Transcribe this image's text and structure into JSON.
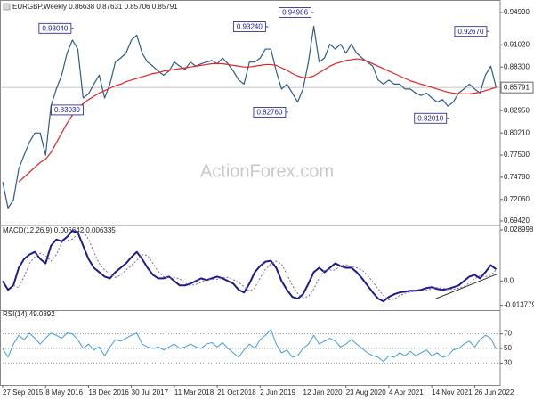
{
  "chart_data": [
    {
      "type": "line",
      "title": "EURGBP,Weekly  0.86638 0.87631 0.85706 0.85791",
      "watermark": "ActionForex.com",
      "x": [
        0,
        4,
        8,
        12,
        16,
        20,
        24,
        28,
        32,
        36,
        40,
        44,
        48,
        52,
        56,
        60,
        64,
        68,
        72,
        76,
        80,
        84,
        88,
        92,
        96,
        100,
        104,
        108,
        112,
        116,
        120,
        124,
        128,
        132,
        136,
        140,
        144,
        148,
        152,
        156,
        160,
        164,
        168,
        172,
        176,
        180,
        184,
        188,
        192,
        196,
        200,
        204,
        208,
        212,
        216,
        220,
        224,
        228,
        232,
        236,
        240,
        244,
        248,
        252,
        256,
        260,
        264,
        268,
        272,
        276,
        280,
        284,
        288,
        292,
        296,
        300,
        304,
        308,
        312,
        316,
        320,
        324,
        328,
        332,
        336,
        340,
        344,
        348,
        352,
        356,
        360,
        364,
        368
      ],
      "xlim": [
        -2,
        371
      ],
      "ylim": [
        0.6898,
        0.9597
      ],
      "yticks": [
        {
          "value": 0.9499,
          "label": "0.94990"
        },
        {
          "value": 0.9102,
          "label": "0.91020"
        },
        {
          "value": 0.883,
          "label": "0.88300"
        },
        {
          "value": 0.8295,
          "label": "0.82950"
        },
        {
          "value": 0.8021,
          "label": "0.80210"
        },
        {
          "value": 0.775,
          "label": "0.77500"
        },
        {
          "value": 0.7478,
          "label": "0.74780"
        },
        {
          "value": 0.7206,
          "label": "0.72060"
        },
        {
          "value": 0.6942,
          "label": "0.69420"
        }
      ],
      "last": 0.85791,
      "series": [
        {
          "color": "#2e5c8a",
          "width": 1.2,
          "values": [
            0.742,
            0.71,
            0.72,
            0.758,
            0.775,
            0.791,
            0.802,
            0.802,
            0.775,
            0.835,
            0.856,
            0.873,
            0.9,
            0.916,
            0.905,
            0.845,
            0.85,
            0.862,
            0.873,
            0.845,
            0.862,
            0.889,
            0.894,
            0.9,
            0.916,
            0.922,
            0.9,
            0.889,
            0.884,
            0.878,
            0.873,
            0.878,
            0.889,
            0.884,
            0.88,
            0.889,
            0.884,
            0.887,
            0.889,
            0.891,
            0.887,
            0.894,
            0.887,
            0.878,
            0.867,
            0.862,
            0.889,
            0.889,
            0.894,
            0.905,
            0.905,
            0.878,
            0.856,
            0.862,
            0.851,
            0.84,
            0.856,
            0.889,
            0.933,
            0.889,
            0.894,
            0.911,
            0.905,
            0.911,
            0.9,
            0.911,
            0.9,
            0.894,
            0.889,
            0.884,
            0.867,
            0.862,
            0.867,
            0.862,
            0.862,
            0.856,
            0.856,
            0.851,
            0.848,
            0.851,
            0.845,
            0.84,
            0.843,
            0.835,
            0.84,
            0.851,
            0.856,
            0.862,
            0.856,
            0.851,
            0.873,
            0.884,
            0.85791
          ]
        },
        {
          "color": "#e02424",
          "width": 1.2,
          "values": [
            null,
            null,
            null,
            0.742,
            0.748,
            0.754,
            0.76,
            0.766,
            0.77,
            0.778,
            0.79,
            0.802,
            0.814,
            0.824,
            0.832,
            0.838,
            0.843,
            0.847,
            0.851,
            0.854,
            0.857,
            0.86,
            0.862,
            0.865,
            0.867,
            0.869,
            0.871,
            0.873,
            0.875,
            0.876,
            0.878,
            0.879,
            0.88,
            0.881,
            0.882,
            0.883,
            0.884,
            0.885,
            0.886,
            0.887,
            0.887,
            0.887,
            0.886,
            0.885,
            0.884,
            0.883,
            0.883,
            0.884,
            0.885,
            0.886,
            0.886,
            0.885,
            0.882,
            0.879,
            0.875,
            0.872,
            0.87,
            0.87,
            0.872,
            0.876,
            0.88,
            0.884,
            0.887,
            0.889,
            0.891,
            0.892,
            0.893,
            0.892,
            0.89,
            0.887,
            0.884,
            0.881,
            0.878,
            0.875,
            0.872,
            0.869,
            0.866,
            0.864,
            0.862,
            0.86,
            0.858,
            0.856,
            0.854,
            0.852,
            0.851,
            0.85,
            0.85,
            0.85,
            0.851,
            0.852,
            0.854,
            0.856,
            0.858
          ]
        }
      ],
      "annotations": [
        {
          "label": "0.93040",
          "value": 0.9304,
          "x": 53
        },
        {
          "label": "0.83030",
          "value": 0.8303,
          "x": 62
        },
        {
          "label": "0.93240",
          "value": 0.9324,
          "x": 198
        },
        {
          "label": "0.82760",
          "value": 0.8276,
          "x": 213
        },
        {
          "label": "0.94986",
          "value": 0.94986,
          "x": 232
        },
        {
          "label": "0.82010",
          "value": 0.8201,
          "x": 333
        },
        {
          "label": "0.92670",
          "value": 0.9267,
          "x": 363
        }
      ]
    },
    {
      "type": "line",
      "title": "MACD(12,26,9) 0.006642 0.006335",
      "x": [
        0,
        4,
        8,
        12,
        16,
        20,
        24,
        28,
        32,
        36,
        40,
        44,
        48,
        52,
        56,
        60,
        64,
        68,
        72,
        76,
        80,
        84,
        88,
        92,
        96,
        100,
        104,
        108,
        112,
        116,
        120,
        124,
        128,
        132,
        136,
        140,
        144,
        148,
        152,
        156,
        160,
        164,
        168,
        172,
        176,
        180,
        184,
        188,
        192,
        196,
        200,
        204,
        208,
        212,
        216,
        220,
        224,
        228,
        232,
        236,
        240,
        244,
        248,
        252,
        256,
        260,
        264,
        268,
        272,
        276,
        280,
        284,
        288,
        292,
        296,
        300,
        304,
        308,
        312,
        316,
        320,
        324,
        328,
        332,
        336,
        340,
        344,
        348,
        352,
        356,
        360,
        364,
        368
      ],
      "xlim": [
        -2,
        371
      ],
      "ylim": [
        -0.016,
        0.031
      ],
      "yticks": [
        0.028998,
        {
          "value": 0,
          "label": "0.0"
        },
        -0.013779
      ],
      "series": [
        {
          "color": "#1c1c8c",
          "width": 2,
          "values": [
            0,
            -0.005,
            -0.0025,
            0.0075,
            0.0125,
            0.015,
            0.0165,
            0.0125,
            0.01,
            0.02,
            0.0235,
            0.0225,
            0.025,
            0.0285,
            0.0275,
            0.02,
            0.0125,
            0.0075,
            0.005,
            0.0025,
            0.0015,
            0.005,
            0.0075,
            0.01,
            0.0135,
            0.0165,
            0.0125,
            0.0075,
            0.0035,
            0.0015,
            0.0015,
            0.0025,
            0,
            -0.0025,
            -0.0025,
            -0.0015,
            0,
            0.0015,
            0.0005,
            0.0015,
            0.0025,
            0.0015,
            0,
            -0.0015,
            -0.005,
            -0.0065,
            -0.0015,
            0.005,
            0.0085,
            0.011,
            0.0115,
            0.0075,
            0,
            -0.005,
            -0.009,
            -0.01,
            -0.0075,
            -0.0015,
            0.005,
            0.0075,
            0.005,
            0.0075,
            0.01,
            0.0085,
            0.0075,
            0.0075,
            0.005,
            0.0015,
            -0.0025,
            -0.0065,
            -0.01,
            -0.0115,
            -0.009,
            -0.0075,
            -0.0065,
            -0.006,
            -0.0055,
            -0.0055,
            -0.005,
            -0.004,
            -0.0035,
            -0.0045,
            -0.005,
            -0.0045,
            -0.0035,
            -0.0025,
            0,
            0.0025,
            0.0035,
            0.0015,
            0.005,
            0.009,
            0.006642
          ]
        },
        {
          "color": "#8a5fa8",
          "width": 1,
          "dash": true,
          "values": [
            null,
            null,
            -0.0025,
            -0.00375,
            0.0025,
            0.01,
            0.01375,
            0.01575,
            0.0145,
            0.01125,
            0.015,
            0.02175,
            0.023,
            0.02375,
            0.02675,
            0.028,
            0.02375,
            0.01625,
            0.01,
            0.00625,
            0.00375,
            0.002,
            0.00325,
            0.00625,
            0.00875,
            0.01175,
            0.015,
            0.0145,
            0.01,
            0.0055,
            0.0025,
            0.0015,
            0.002,
            0.00125,
            -0.00125,
            -0.0025,
            -0.002,
            -0.00075,
            0.00075,
            0.001,
            0.001,
            0.002,
            0.002,
            0.00075,
            -0.00075,
            -0.00325,
            -0.00575,
            -0.004,
            0.00175,
            0.00675,
            0.00975,
            0.01125,
            0.0095,
            0.00375,
            -0.0025,
            -0.007,
            -0.0095,
            -0.00875,
            -0.0045,
            0.00175,
            0.00625,
            0.00625,
            0.00625,
            0.00875,
            0.00925,
            0.008,
            0.0075,
            0.00625,
            0.00325,
            -0.0005,
            -0.0045,
            -0.00825,
            -0.01075,
            -0.01025,
            -0.00825,
            -0.007,
            -0.00625,
            -0.00575,
            -0.0055,
            -0.00525,
            -0.0045,
            -0.00375,
            -0.004,
            -0.00475,
            -0.00475,
            -0.004,
            -0.003,
            -0.00125,
            0.00125,
            0.003,
            0.0025,
            0.00325,
            0.006335
          ]
        }
      ],
      "trendline": {
        "color": "#333333",
        "x": [
          323,
          369
        ],
        "values": [
          -0.01,
          0.004
        ]
      }
    },
    {
      "type": "line",
      "title": "RSI(14) 49.0892",
      "x": [
        0,
        4,
        8,
        12,
        16,
        20,
        24,
        28,
        32,
        36,
        40,
        44,
        48,
        52,
        56,
        60,
        64,
        68,
        72,
        76,
        80,
        84,
        88,
        92,
        96,
        100,
        104,
        108,
        112,
        116,
        120,
        124,
        128,
        132,
        136,
        140,
        144,
        148,
        152,
        156,
        160,
        164,
        168,
        172,
        176,
        180,
        184,
        188,
        192,
        196,
        200,
        204,
        208,
        212,
        216,
        220,
        224,
        228,
        232,
        236,
        240,
        244,
        248,
        252,
        256,
        260,
        264,
        268,
        272,
        276,
        280,
        284,
        288,
        292,
        296,
        300,
        304,
        308,
        312,
        316,
        320,
        324,
        328,
        332,
        336,
        340,
        344,
        348,
        352,
        356,
        360,
        364,
        368
      ],
      "xlim": [
        -2,
        371
      ],
      "ylim": [
        0,
        100
      ],
      "yticks": [
        70,
        50,
        30
      ],
      "grid": true,
      "xticks": [
        {
          "value": 0,
          "label": "27 Sep 2015"
        },
        {
          "value": 32,
          "label": "8 May 2016"
        },
        {
          "value": 64,
          "label": "18 Dec 2016"
        },
        {
          "value": 96,
          "label": "30 Jul 2017"
        },
        {
          "value": 128,
          "label": "11 Mar 2018"
        },
        {
          "value": 160,
          "label": "21 Oct 2018"
        },
        {
          "value": 192,
          "label": "2 Jun 2019"
        },
        {
          "value": 224,
          "label": "12 Jan 2020"
        },
        {
          "value": 256,
          "label": "23 Aug 2020"
        },
        {
          "value": 288,
          "label": "4 Apr 2021"
        },
        {
          "value": 320,
          "label": "14 Nov 2021"
        },
        {
          "value": 352,
          "label": "26 Jun 2022"
        }
      ],
      "series": [
        {
          "color": "#3d9ee0",
          "width": 1,
          "values": [
            50,
            38,
            56,
            68,
            62,
            71,
            64,
            56,
            64,
            71,
            68,
            64,
            71,
            70,
            62,
            50,
            56,
            48,
            52,
            40,
            52,
            62,
            60,
            64,
            68,
            71,
            56,
            52,
            50,
            52,
            48,
            52,
            56,
            50,
            52,
            56,
            52,
            50,
            56,
            58,
            52,
            58,
            50,
            44,
            38,
            48,
            56,
            50,
            62,
            68,
            76,
            56,
            44,
            48,
            38,
            40,
            50,
            56,
            68,
            56,
            60,
            64,
            60,
            52,
            56,
            62,
            56,
            50,
            44,
            40,
            38,
            32,
            40,
            38,
            44,
            40,
            46,
            40,
            44,
            48,
            40,
            44,
            38,
            40,
            48,
            50,
            56,
            60,
            52,
            62,
            68,
            64,
            49.0892
          ]
        }
      ]
    }
  ]
}
